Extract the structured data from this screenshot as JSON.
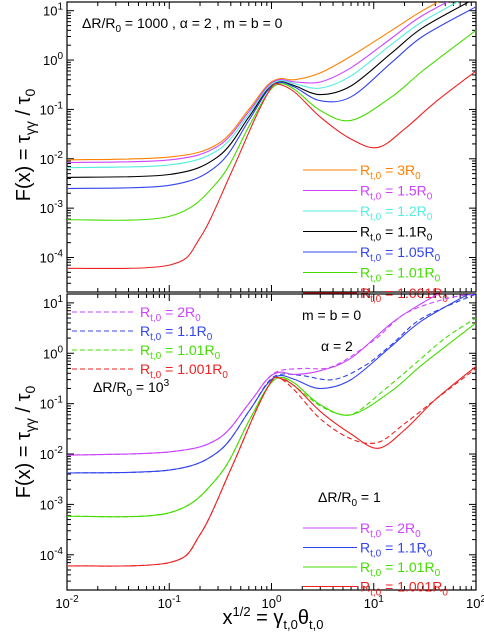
{
  "chart_data": [
    {
      "type": "line",
      "panel": "top",
      "xscale": "log",
      "yscale": "log",
      "xlim": [
        0.01,
        100
      ],
      "ylim": [
        2e-05,
        15
      ],
      "ylabel": "F(x) = τγγ / τ0",
      "annotation": "ΔR/R0 = 1000 ,  α = 2 ,  m = b = 0",
      "legend_position": "lower-right",
      "y_ticks": [
        {
          "v": 0.0001,
          "base": "10",
          "exp": "-4"
        },
        {
          "v": 0.001,
          "base": "10",
          "exp": "-3"
        },
        {
          "v": 0.01,
          "base": "10",
          "exp": "-2"
        },
        {
          "v": 0.1,
          "base": "10",
          "exp": "-1"
        },
        {
          "v": 1,
          "base": "10",
          "exp": "0"
        },
        {
          "v": 10,
          "base": "10",
          "exp": "1"
        }
      ],
      "series": [
        {
          "name": "Rt,0 = 3R0",
          "color": "#ff8000",
          "dash": false,
          "x": [
            0.01,
            0.1,
            0.3,
            0.6,
            0.9,
            1.2,
            1.7,
            3,
            6,
            15,
            30,
            100
          ],
          "y": [
            0.0095,
            0.0108,
            0.02,
            0.1,
            0.3,
            0.42,
            0.4,
            0.55,
            1.2,
            4,
            10,
            40
          ]
        },
        {
          "name": "Rt,0 = 1.5R0",
          "color": "#cc44ff",
          "dash": false,
          "x": [
            0.01,
            0.1,
            0.3,
            0.6,
            0.9,
            1.2,
            1.7,
            3,
            6,
            15,
            30,
            100
          ],
          "y": [
            0.0084,
            0.0095,
            0.018,
            0.09,
            0.28,
            0.4,
            0.36,
            0.36,
            0.7,
            2.8,
            8,
            30
          ]
        },
        {
          "name": "Rt,0 = 1.2R0",
          "color": "#55eedd",
          "dash": false,
          "x": [
            0.01,
            0.1,
            0.3,
            0.6,
            0.9,
            1.2,
            1.7,
            3,
            6,
            15,
            30,
            100
          ],
          "y": [
            0.0066,
            0.0075,
            0.015,
            0.08,
            0.26,
            0.38,
            0.33,
            0.27,
            0.48,
            2.1,
            6,
            24
          ]
        },
        {
          "name": "Rt,0 = 1.1R0",
          "color": "#000000",
          "dash": false,
          "x": [
            0.01,
            0.1,
            0.3,
            0.6,
            0.9,
            1.2,
            1.7,
            3,
            6,
            15,
            30,
            100
          ],
          "y": [
            0.0042,
            0.0048,
            0.011,
            0.07,
            0.24,
            0.36,
            0.3,
            0.2,
            0.3,
            1.4,
            4.5,
            18
          ]
        },
        {
          "name": "Rt,0 = 1.05R0",
          "color": "#3344ee",
          "dash": false,
          "x": [
            0.01,
            0.1,
            0.3,
            0.6,
            0.9,
            1.2,
            1.7,
            3,
            6,
            15,
            30,
            100
          ],
          "y": [
            0.0025,
            0.0029,
            0.0075,
            0.06,
            0.23,
            0.35,
            0.28,
            0.15,
            0.18,
            0.9,
            3,
            12
          ]
        },
        {
          "name": "Rt,0 = 1.01R0",
          "color": "#44dd00",
          "dash": false,
          "x": [
            0.01,
            0.1,
            0.3,
            0.6,
            0.9,
            1.2,
            1.7,
            3,
            6,
            15,
            30,
            100
          ],
          "y": [
            0.00058,
            0.00068,
            0.0035,
            0.045,
            0.2,
            0.33,
            0.25,
            0.095,
            0.06,
            0.18,
            0.6,
            4
          ]
        },
        {
          "name": "Rt,0 = 1.001R0",
          "color": "#ee2222",
          "dash": false,
          "x": [
            0.01,
            0.1,
            0.2,
            0.4,
            0.7,
            1.0,
            1.2,
            1.7,
            3,
            6,
            11,
            20,
            40,
            100
          ],
          "y": [
            6e-05,
            7e-05,
            0.00025,
            0.005,
            0.07,
            0.28,
            0.32,
            0.22,
            0.07,
            0.025,
            0.017,
            0.04,
            0.14,
            0.6
          ]
        }
      ]
    },
    {
      "type": "line",
      "panel": "bottom",
      "xscale": "log",
      "yscale": "log",
      "xlim": [
        0.01,
        100
      ],
      "ylim": [
        2e-05,
        15
      ],
      "xlabel": "x1/2 = γt,0θt,0",
      "ylabel": "F(x) = τγγ / τ0",
      "annotations": [
        "m = b = 0",
        "α = 2",
        "ΔR/R0 = 103",
        "ΔR/R0 = 1"
      ],
      "x_ticks": [
        {
          "v": 0.01,
          "base": "10",
          "exp": "-2"
        },
        {
          "v": 0.1,
          "base": "10",
          "exp": "-1"
        },
        {
          "v": 1,
          "base": "10",
          "exp": "0"
        },
        {
          "v": 10,
          "base": "10",
          "exp": "1"
        },
        {
          "v": 100,
          "base": "10",
          "exp": "2"
        }
      ],
      "y_ticks": [
        {
          "v": 0.0001,
          "base": "10",
          "exp": "-4"
        },
        {
          "v": 0.001,
          "base": "10",
          "exp": "-3"
        },
        {
          "v": 0.01,
          "base": "10",
          "exp": "-2"
        },
        {
          "v": 0.1,
          "base": "10",
          "exp": "-1"
        },
        {
          "v": 1,
          "base": "10",
          "exp": "0"
        },
        {
          "v": 10,
          "base": "10",
          "exp": "1"
        }
      ],
      "legend_dashed_position": "top-left",
      "legend_solid_position": "lower-right",
      "series": [
        {
          "name": "Rt,0 = 2R0",
          "color": "#cc44ff",
          "dash": true,
          "x": [
            0.01,
            0.1,
            0.3,
            0.6,
            0.9,
            1.2,
            2,
            4,
            10,
            20,
            50,
            100
          ],
          "y": [
            0.0095,
            0.011,
            0.02,
            0.1,
            0.3,
            0.45,
            0.5,
            0.55,
            1.8,
            6,
            12,
            15
          ]
        },
        {
          "name": "Rt,0 = 1.1R0",
          "color": "#3344ee",
          "dash": true,
          "x": [
            0.01,
            0.1,
            0.3,
            0.6,
            0.9,
            1.2,
            2,
            4,
            8,
            15,
            30,
            100
          ],
          "y": [
            0.0042,
            0.0048,
            0.011,
            0.07,
            0.25,
            0.38,
            0.36,
            0.3,
            0.55,
            1.5,
            5,
            15
          ]
        },
        {
          "name": "Rt,0 = 1.01R0",
          "color": "#44dd00",
          "dash": true,
          "x": [
            0.01,
            0.1,
            0.3,
            0.6,
            0.9,
            1.2,
            1.7,
            3,
            5,
            7,
            12,
            25,
            50,
            100
          ],
          "y": [
            0.00058,
            0.00068,
            0.0035,
            0.045,
            0.2,
            0.33,
            0.22,
            0.09,
            0.06,
            0.07,
            0.17,
            0.6,
            2,
            5
          ]
        },
        {
          "name": "Rt,0 = 1.001R0",
          "color": "#ee2222",
          "dash": true,
          "x": [
            0.01,
            0.1,
            0.2,
            0.4,
            0.7,
            1.0,
            1.2,
            1.7,
            3,
            6,
            11,
            20,
            40,
            100
          ],
          "y": [
            6e-05,
            7e-05,
            0.00025,
            0.005,
            0.07,
            0.28,
            0.32,
            0.18,
            0.05,
            0.02,
            0.017,
            0.04,
            0.12,
            0.5
          ]
        },
        {
          "name": "Rt,0 = 2R0",
          "color": "#cc44ff",
          "dash": false,
          "x": [
            0.01,
            0.1,
            0.3,
            0.6,
            0.9,
            1.2,
            1.7,
            3,
            6,
            15,
            30,
            100
          ],
          "y": [
            0.0095,
            0.011,
            0.02,
            0.1,
            0.3,
            0.42,
            0.38,
            0.45,
            0.8,
            4,
            10,
            40
          ]
        },
        {
          "name": "Rt,0 = 1.1R0",
          "color": "#3344ee",
          "dash": false,
          "x": [
            0.01,
            0.1,
            0.3,
            0.6,
            0.9,
            1.2,
            1.7,
            3,
            6,
            15,
            30,
            100
          ],
          "y": [
            0.0042,
            0.0048,
            0.011,
            0.07,
            0.24,
            0.36,
            0.3,
            0.2,
            0.3,
            1.4,
            4.5,
            18
          ]
        },
        {
          "name": "Rt,0 = 1.01R0",
          "color": "#44dd00",
          "dash": false,
          "x": [
            0.01,
            0.1,
            0.3,
            0.6,
            0.9,
            1.2,
            1.7,
            3,
            6,
            15,
            30,
            100
          ],
          "y": [
            0.00058,
            0.00068,
            0.0035,
            0.045,
            0.2,
            0.33,
            0.25,
            0.095,
            0.06,
            0.18,
            0.6,
            4
          ]
        },
        {
          "name": "Rt,0 = 1.001R0",
          "color": "#ee2222",
          "dash": false,
          "x": [
            0.01,
            0.1,
            0.2,
            0.4,
            0.7,
            1.0,
            1.2,
            1.7,
            3,
            6,
            11,
            20,
            40,
            100
          ],
          "y": [
            6e-05,
            7e-05,
            0.00025,
            0.005,
            0.07,
            0.28,
            0.32,
            0.22,
            0.07,
            0.025,
            0.013,
            0.03,
            0.12,
            0.55
          ]
        }
      ]
    }
  ],
  "labels": {
    "top_annotation": "ΔR/R0 = 1000 ,  α = 2 ,  m = b = 0",
    "bottom_mb": "m = b = 0",
    "bottom_alpha": "α = 2",
    "bottom_dr_dashed": "ΔR/R0 = 103",
    "bottom_dr_solid": "ΔR/R0 = 1"
  }
}
